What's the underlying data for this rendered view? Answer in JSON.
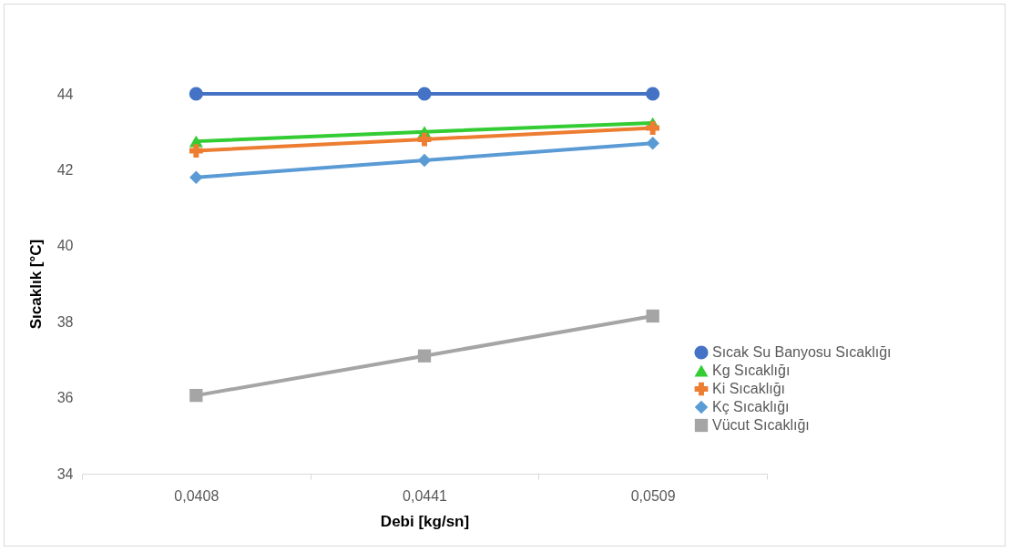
{
  "chart_data": {
    "type": "line",
    "xlabel": "Debi [kg/sn]",
    "ylabel": "Sıcaklık [°C]",
    "categories": [
      "0,0408",
      "0,0441",
      "0,0509"
    ],
    "series": [
      {
        "name": "Sıcak Su Banyosu Sıcaklığı",
        "color": "#4472c4",
        "marker": "circle",
        "values": [
          44,
          44,
          44
        ]
      },
      {
        "name": "Kg Sıcaklığı",
        "color": "#33cc33",
        "marker": "triangle",
        "values": [
          42.75,
          43.0,
          43.23
        ]
      },
      {
        "name": "Ki Sıcaklığı",
        "color": "#ed7d31",
        "marker": "cross",
        "values": [
          42.5,
          42.8,
          43.1
        ]
      },
      {
        "name": "Kç Sıcaklığı",
        "color": "#5b9bd5",
        "marker": "diamond",
        "values": [
          41.8,
          42.25,
          42.7
        ]
      },
      {
        "name": "Vücut Sıcaklığı",
        "color": "#a5a5a5",
        "marker": "square",
        "values": [
          36.06,
          37.1,
          38.15
        ]
      }
    ],
    "ylim": [
      34,
      44
    ],
    "yticks": [
      34,
      36,
      38,
      40,
      42,
      44
    ],
    "grid": false,
    "legend": "right",
    "line_style": "solid"
  }
}
